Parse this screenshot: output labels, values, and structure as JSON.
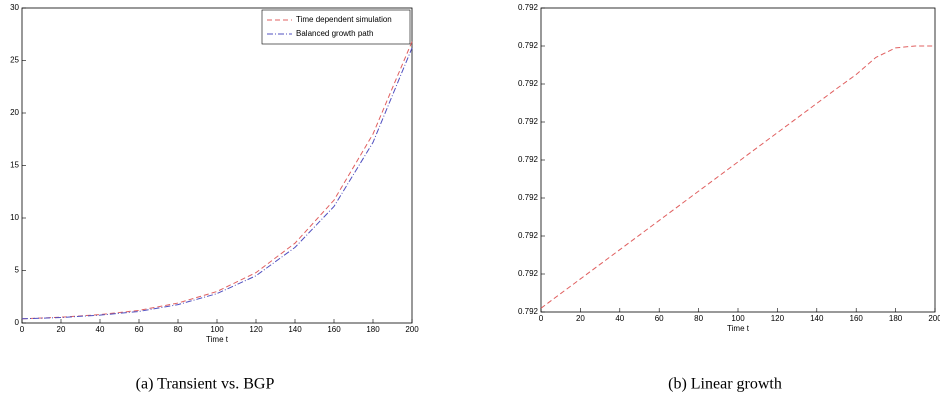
{
  "chart_data": [
    {
      "type": "line",
      "caption": "(a) Transient vs. BGP",
      "xlabel": "Time t",
      "x": [
        0,
        20,
        40,
        60,
        80,
        100,
        120,
        140,
        160,
        180,
        200
      ],
      "series": [
        {
          "name": "Time dependent simulation",
          "color": "#e06060",
          "dash": "dashed",
          "values": [
            0.4,
            0.55,
            0.8,
            1.2,
            1.9,
            3.0,
            4.8,
            7.6,
            11.7,
            18.0,
            26.8
          ]
        },
        {
          "name": "Balanced growth path",
          "color": "#5050c0",
          "dash": "dashdot",
          "values": [
            0.4,
            0.52,
            0.75,
            1.1,
            1.75,
            2.8,
            4.5,
            7.2,
            11.1,
            17.2,
            26.2
          ]
        }
      ],
      "xlim": [
        0,
        200
      ],
      "xticks": [
        0,
        20,
        40,
        60,
        80,
        100,
        120,
        140,
        160,
        180,
        200
      ],
      "ylim": [
        0,
        30
      ],
      "yticks": [
        0,
        5,
        10,
        15,
        20,
        25,
        30
      ],
      "legend": "upper right"
    },
    {
      "type": "line",
      "caption": "(b) Linear growth",
      "xlabel": "Time t",
      "x": [
        0,
        10,
        20,
        30,
        40,
        50,
        60,
        70,
        80,
        90,
        100,
        110,
        120,
        130,
        140,
        150,
        160,
        170,
        180,
        190,
        200
      ],
      "values": [
        0.792001,
        0.79200485,
        0.7920087,
        0.79201255,
        0.7920164,
        0.79202025,
        0.7920241,
        0.79202795,
        0.7920318,
        0.79203565,
        0.7920395,
        0.79204335,
        0.7920472,
        0.79205105,
        0.7920549,
        0.79205875,
        0.7920625,
        0.792067,
        0.7920695,
        0.79207,
        0.79207
      ],
      "color": "#e06060",
      "dash": "dashed",
      "xlim": [
        0,
        200
      ],
      "xticks": [
        0,
        20,
        40,
        60,
        80,
        100,
        120,
        140,
        160,
        180,
        200
      ],
      "ylim": [
        0.792,
        0.79208
      ],
      "yticks": [
        {
          "value": 0.792,
          "label": "0.792"
        },
        {
          "value": 0.79201,
          "label": "0.792"
        },
        {
          "value": 0.79202,
          "label": "0.792"
        },
        {
          "value": 0.79203,
          "label": "0.792"
        },
        {
          "value": 0.79204,
          "label": "0.792"
        },
        {
          "value": 0.79205,
          "label": "0.792"
        },
        {
          "value": 0.79206,
          "label": "0.792"
        },
        {
          "value": 0.79207,
          "label": "0.792"
        },
        {
          "value": 0.79208,
          "label": "0.792"
        }
      ]
    }
  ]
}
